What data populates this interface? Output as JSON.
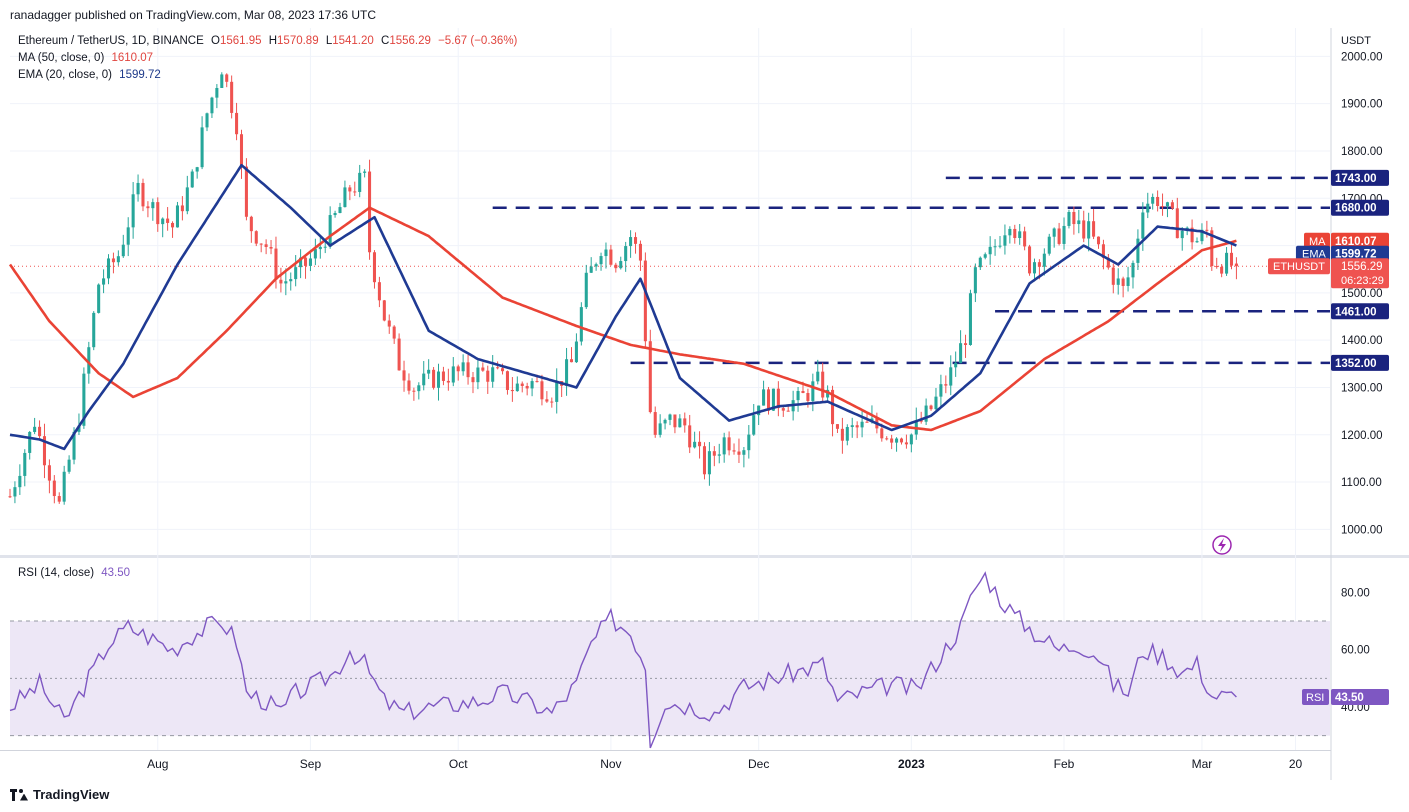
{
  "publisher_line": "ranadagger published on TradingView.com, Mar 08, 2023 17:36 UTC",
  "footer_brand": "TradingView",
  "colors": {
    "up": "#26a69a",
    "down": "#ef5350",
    "ma": "#ea4335",
    "ema": "#1f3a93",
    "rsi": "#7e57c2",
    "rsi_band": "#ede7f6",
    "level_line": "#1a237e",
    "axis_text": "#131722",
    "grid": "#f0f3fa"
  },
  "chart_data": [
    {
      "type": "candlestick",
      "symbol_line": {
        "name": "Ethereum / TetherUS, 1D, BINANCE",
        "o_label": "O",
        "open": "1561.95",
        "h_label": "H",
        "high": "1570.89",
        "l_label": "L",
        "low": "1541.20",
        "c_label": "C",
        "close": "1556.29",
        "change": "−5.67 (−0.36%)"
      },
      "indicators": [
        {
          "label": "MA (50, close, 0)",
          "value": "1610.07",
          "tag": "MA"
        },
        {
          "label": "EMA (20, close, 0)",
          "value": "1599.72",
          "tag": "EMA"
        }
      ],
      "yaxis_unit": "USDT",
      "ylim": [
        950,
        2060
      ],
      "yticks": [
        "1000.00",
        "1100.00",
        "1200.00",
        "1300.00",
        "1400.00",
        "1500.00",
        "1600.00",
        "1700.00",
        "1800.00",
        "1900.00",
        "2000.00"
      ],
      "xticks": [
        {
          "label": "Aug",
          "x": "2022-08-01"
        },
        {
          "label": "Sep",
          "x": "2022-09-01"
        },
        {
          "label": "Oct",
          "x": "2022-10-01"
        },
        {
          "label": "Nov",
          "x": "2022-11-01"
        },
        {
          "label": "Dec",
          "x": "2022-12-01"
        },
        {
          "label": "2023",
          "x": "2023-01-01",
          "bold": true
        },
        {
          "label": "Feb",
          "x": "2023-02-01"
        },
        {
          "label": "Mar",
          "x": "2023-03-01"
        },
        {
          "label": "20",
          "x": "2023-03-20"
        }
      ],
      "xrange": [
        "2022-07-02",
        "2023-03-27"
      ],
      "levels": [
        {
          "label": "1743.00",
          "value": 1743,
          "from": "2023-01-08"
        },
        {
          "label": "1680.00",
          "value": 1680,
          "from": "2022-10-08"
        },
        {
          "label": "1461.00",
          "value": 1461,
          "from": "2023-01-18"
        },
        {
          "label": "1352.00",
          "value": 1352,
          "from": "2022-11-05"
        }
      ],
      "price_tag": {
        "label": "ETHUSDT",
        "value": "1556.29",
        "countdown": "06:23:29"
      },
      "close_path": [
        [
          "2022-07-02",
          1070
        ],
        [
          "2022-07-07",
          1230
        ],
        [
          "2022-07-12",
          1050
        ],
        [
          "2022-07-16",
          1240
        ],
        [
          "2022-07-20",
          1520
        ],
        [
          "2022-07-24",
          1580
        ],
        [
          "2022-07-28",
          1720
        ],
        [
          "2022-07-31",
          1680
        ],
        [
          "2022-08-04",
          1640
        ],
        [
          "2022-08-08",
          1740
        ],
        [
          "2022-08-11",
          1880
        ],
        [
          "2022-08-14",
          1980
        ],
        [
          "2022-08-17",
          1860
        ],
        [
          "2022-08-19",
          1650
        ],
        [
          "2022-08-23",
          1600
        ],
        [
          "2022-08-26",
          1520
        ],
        [
          "2022-08-29",
          1540
        ],
        [
          "2022-09-02",
          1580
        ],
        [
          "2022-09-06",
          1660
        ],
        [
          "2022-09-09",
          1720
        ],
        [
          "2022-09-12",
          1740
        ],
        [
          "2022-09-13",
          1590
        ],
        [
          "2022-09-16",
          1450
        ],
        [
          "2022-09-19",
          1350
        ],
        [
          "2022-09-22",
          1300
        ],
        [
          "2022-09-26",
          1320
        ],
        [
          "2022-09-30",
          1330
        ],
        [
          "2022-10-04",
          1330
        ],
        [
          "2022-10-08",
          1330
        ],
        [
          "2022-10-12",
          1300
        ],
        [
          "2022-10-16",
          1310
        ],
        [
          "2022-10-20",
          1290
        ],
        [
          "2022-10-24",
          1350
        ],
        [
          "2022-10-27",
          1520
        ],
        [
          "2022-10-30",
          1600
        ],
        [
          "2022-11-02",
          1570
        ],
        [
          "2022-11-05",
          1620
        ],
        [
          "2022-11-07",
          1570
        ],
        [
          "2022-11-09",
          1250
        ],
        [
          "2022-11-10",
          1200
        ],
        [
          "2022-11-13",
          1230
        ],
        [
          "2022-11-16",
          1220
        ],
        [
          "2022-11-20",
          1130
        ],
        [
          "2022-11-24",
          1190
        ],
        [
          "2022-11-28",
          1180
        ],
        [
          "2022-12-01",
          1280
        ],
        [
          "2022-12-05",
          1270
        ],
        [
          "2022-12-09",
          1270
        ],
        [
          "2022-12-13",
          1310
        ],
        [
          "2022-12-15",
          1280
        ],
        [
          "2022-12-17",
          1190
        ],
        [
          "2022-12-20",
          1210
        ],
        [
          "2022-12-24",
          1220
        ],
        [
          "2022-12-28",
          1200
        ],
        [
          "2023-01-01",
          1200
        ],
        [
          "2023-01-05",
          1255
        ],
        [
          "2023-01-09",
          1330
        ],
        [
          "2023-01-12",
          1410
        ],
        [
          "2023-01-14",
          1540
        ],
        [
          "2023-01-17",
          1580
        ],
        [
          "2023-01-21",
          1660
        ],
        [
          "2023-01-25",
          1560
        ],
        [
          "2023-01-29",
          1600
        ],
        [
          "2023-02-02",
          1650
        ],
        [
          "2023-02-06",
          1630
        ],
        [
          "2023-02-10",
          1550
        ],
        [
          "2023-02-13",
          1505
        ],
        [
          "2023-02-15",
          1560
        ],
        [
          "2023-02-17",
          1690
        ],
        [
          "2023-02-20",
          1700
        ],
        [
          "2023-02-24",
          1640
        ],
        [
          "2023-02-28",
          1610
        ],
        [
          "2023-03-02",
          1630
        ],
        [
          "2023-03-03",
          1570
        ],
        [
          "2023-03-08",
          1556
        ]
      ],
      "series": [
        {
          "name": "MA",
          "x": [
            "2022-07-02",
            "2022-07-10",
            "2022-07-20",
            "2022-07-27",
            "2022-08-05",
            "2022-08-15",
            "2022-08-25",
            "2022-09-05",
            "2022-09-13",
            "2022-09-25",
            "2022-10-10",
            "2022-10-25",
            "2022-11-05",
            "2022-11-15",
            "2022-11-28",
            "2022-12-15",
            "2022-12-28",
            "2023-01-05",
            "2023-01-15",
            "2023-01-28",
            "2023-02-10",
            "2023-02-20",
            "2023-03-01",
            "2023-03-08"
          ],
          "values": [
            1560,
            1440,
            1330,
            1280,
            1320,
            1420,
            1530,
            1620,
            1680,
            1620,
            1490,
            1430,
            1390,
            1370,
            1350,
            1290,
            1220,
            1210,
            1250,
            1360,
            1440,
            1520,
            1590,
            1610
          ]
        },
        {
          "name": "EMA",
          "x": [
            "2022-07-02",
            "2022-07-08",
            "2022-07-13",
            "2022-07-18",
            "2022-07-25",
            "2022-08-05",
            "2022-08-18",
            "2022-08-28",
            "2022-09-05",
            "2022-09-14",
            "2022-09-25",
            "2022-10-05",
            "2022-10-15",
            "2022-10-25",
            "2022-11-02",
            "2022-11-07",
            "2022-11-15",
            "2022-11-25",
            "2022-12-05",
            "2022-12-15",
            "2022-12-28",
            "2023-01-05",
            "2023-01-15",
            "2023-01-25",
            "2023-02-05",
            "2023-02-12",
            "2023-02-20",
            "2023-03-01",
            "2023-03-08"
          ],
          "values": [
            1200,
            1190,
            1170,
            1250,
            1350,
            1560,
            1770,
            1680,
            1600,
            1660,
            1420,
            1360,
            1330,
            1300,
            1450,
            1530,
            1320,
            1230,
            1260,
            1270,
            1210,
            1240,
            1330,
            1520,
            1600,
            1560,
            1640,
            1630,
            1600
          ]
        }
      ]
    },
    {
      "type": "line",
      "title": "RSI (14, close)",
      "value_label": "43.50",
      "tag": "RSI",
      "ylim": [
        25,
        92
      ],
      "band": [
        30,
        70
      ],
      "yticks": [
        "40.00",
        "60.00",
        "80.00"
      ],
      "series": [
        {
          "name": "RSI",
          "x": [
            "2022-07-02",
            "2022-07-08",
            "2022-07-13",
            "2022-07-18",
            "2022-07-22",
            "2022-07-26",
            "2022-08-01",
            "2022-08-04",
            "2022-08-08",
            "2022-08-11",
            "2022-08-14",
            "2022-08-17",
            "2022-08-19",
            "2022-08-23",
            "2022-08-26",
            "2022-08-29",
            "2022-09-02",
            "2022-09-06",
            "2022-09-09",
            "2022-09-12",
            "2022-09-16",
            "2022-09-20",
            "2022-09-25",
            "2022-09-30",
            "2022-10-05",
            "2022-10-10",
            "2022-10-15",
            "2022-10-20",
            "2022-10-25",
            "2022-10-28",
            "2022-11-01",
            "2022-11-05",
            "2022-11-08",
            "2022-11-09",
            "2022-11-12",
            "2022-11-18",
            "2022-11-22",
            "2022-11-28",
            "2022-12-02",
            "2022-12-08",
            "2022-12-14",
            "2022-12-17",
            "2022-12-22",
            "2022-12-28",
            "2023-01-02",
            "2023-01-07",
            "2023-01-11",
            "2023-01-14",
            "2023-01-16",
            "2023-01-19",
            "2023-01-22",
            "2023-01-26",
            "2023-01-31",
            "2023-02-04",
            "2023-02-08",
            "2023-02-11",
            "2023-02-14",
            "2023-02-17",
            "2023-02-21",
            "2023-02-25",
            "2023-02-28",
            "2023-03-03",
            "2023-03-08"
          ],
          "values": [
            40,
            48,
            35,
            50,
            62,
            68,
            63,
            60,
            65,
            68,
            70,
            63,
            45,
            42,
            38,
            45,
            48,
            52,
            60,
            55,
            42,
            38,
            40,
            41,
            42,
            45,
            42,
            38,
            48,
            62,
            71,
            66,
            55,
            28,
            42,
            40,
            38,
            47,
            49,
            52,
            55,
            42,
            45,
            48,
            46,
            58,
            68,
            82,
            86,
            78,
            72,
            66,
            60,
            62,
            58,
            48,
            45,
            60,
            58,
            52,
            55,
            44,
            43.5
          ]
        }
      ]
    }
  ]
}
